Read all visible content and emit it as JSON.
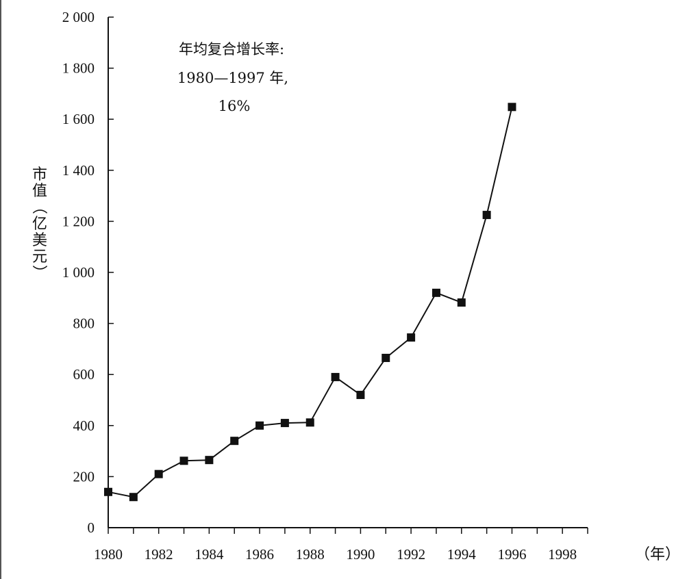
{
  "chart_data": {
    "type": "line",
    "title": "",
    "xlabel": "（年）",
    "ylabel": "市值（亿美元）",
    "xlim": [
      1980,
      1999
    ],
    "ylim": [
      0,
      2000
    ],
    "x_ticks": [
      1980,
      1982,
      1984,
      1986,
      1988,
      1990,
      1992,
      1994,
      1996,
      1998
    ],
    "x_tick_labels": [
      "1980",
      "1982",
      "1984",
      "1986",
      "1988",
      "1990",
      "1992",
      "1994",
      "1996",
      "1998"
    ],
    "y_ticks": [
      0,
      200,
      400,
      600,
      800,
      1000,
      1200,
      1400,
      1600,
      1800,
      2000
    ],
    "y_tick_labels": [
      "0",
      "200",
      "400",
      "600",
      "800",
      "1 000",
      "1 200",
      "1 400",
      "1 600",
      "1 800",
      "2 000"
    ],
    "grid": false,
    "legend": "none",
    "annotation": [
      "年均复合增长率:",
      "1980—1997 年,",
      "16%"
    ],
    "series": [
      {
        "marker": "square",
        "color": "#111111",
        "x": [
          1980,
          1981,
          1982,
          1983,
          1984,
          1985,
          1986,
          1987,
          1988,
          1989,
          1990,
          1991,
          1992,
          1993,
          1994,
          1995,
          1996
        ],
        "y": [
          140,
          120,
          210,
          262,
          265,
          340,
          400,
          410,
          412,
          590,
          520,
          665,
          745,
          920,
          882,
          1225,
          1648
        ]
      }
    ]
  }
}
